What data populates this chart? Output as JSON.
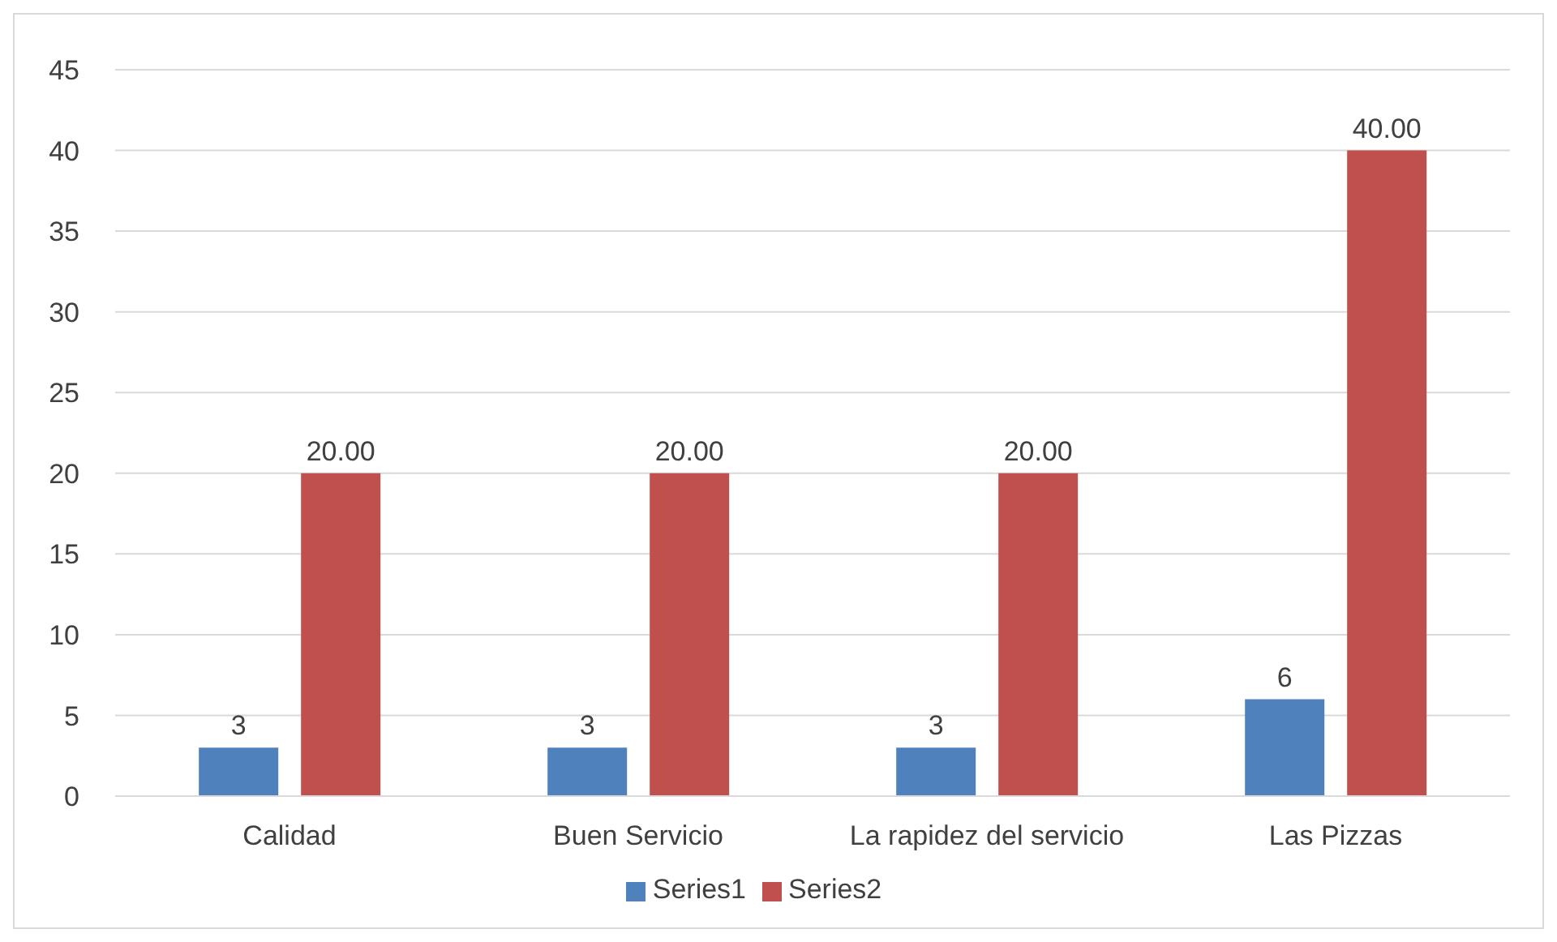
{
  "chart_data": {
    "type": "bar",
    "categories": [
      "Calidad",
      "Buen Servicio",
      "La rapidez del servicio",
      "Las Pizzas"
    ],
    "series": [
      {
        "name": "Series1",
        "color": "#4f81bd",
        "values": [
          3,
          3,
          3,
          6
        ],
        "value_labels": [
          "3",
          "3",
          "3",
          "6"
        ]
      },
      {
        "name": "Series2",
        "color": "#c0504d",
        "values": [
          20,
          20,
          20,
          40
        ],
        "value_labels": [
          "20.00",
          "20.00",
          "20.00",
          "40.00"
        ]
      }
    ],
    "ylim": [
      0,
      45
    ],
    "yticks": [
      0,
      5,
      10,
      15,
      20,
      25,
      30,
      35,
      40,
      45
    ],
    "grid": "y",
    "legend": "bottom"
  }
}
